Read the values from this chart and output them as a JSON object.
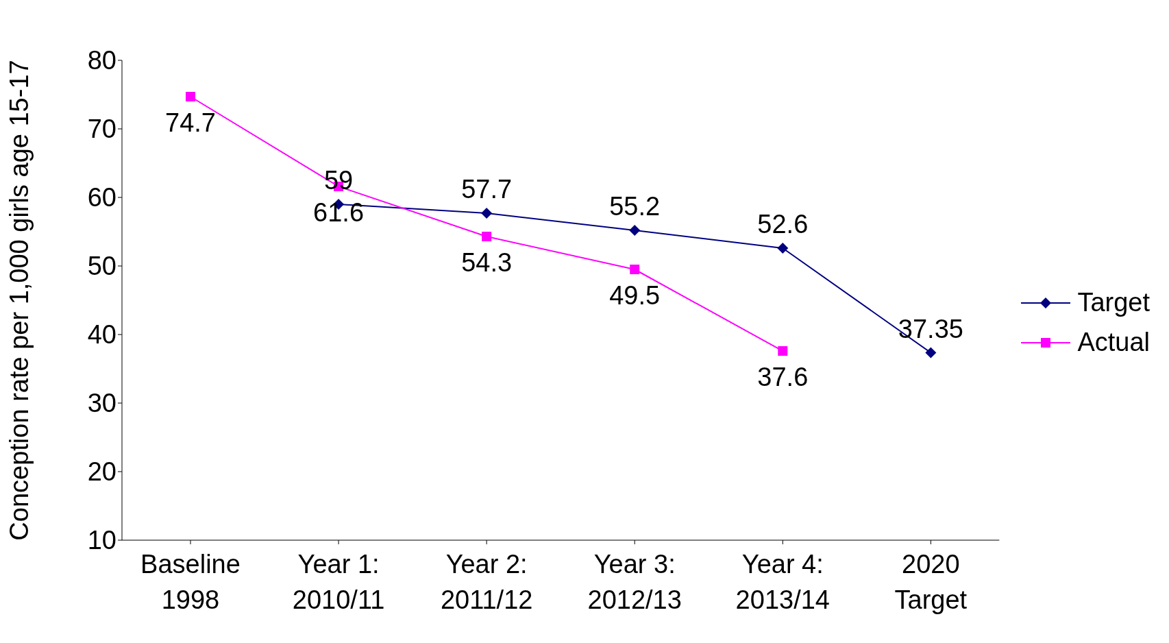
{
  "chart_data": {
    "type": "line",
    "ylabel": "Conception rate per 1,000 girls age 15-17",
    "categories": [
      "Baseline 1998",
      "Year 1: 2010/11",
      "Year 2: 2011/12",
      "Year 3: 2012/13",
      "Year 4: 2013/14",
      "2020 Target"
    ],
    "series": [
      {
        "name": "Target",
        "color": "#000080",
        "marker": "diamond",
        "values": [
          null,
          59,
          57.7,
          55.2,
          52.6,
          37.35
        ]
      },
      {
        "name": "Actual",
        "color": "#ff00ff",
        "marker": "square",
        "values": [
          74.7,
          61.6,
          54.3,
          49.5,
          37.6,
          null
        ]
      }
    ],
    "ylim": [
      10,
      80
    ],
    "yticks": [
      10,
      20,
      30,
      40,
      50,
      60,
      70,
      80
    ],
    "grid": false,
    "legend": "right",
    "data_labels": true
  }
}
